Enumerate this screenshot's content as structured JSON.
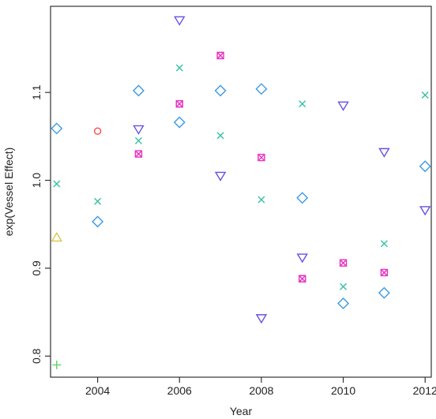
{
  "chart_data": {
    "type": "scatter",
    "title": "",
    "xlabel": "Year",
    "ylabel": "exp(Vessel Effect)",
    "xlim": [
      2002.85,
      2012.15
    ],
    "ylim": [
      0.776,
      1.198
    ],
    "x_ticks": [
      2004,
      2006,
      2008,
      2010,
      2012
    ],
    "y_ticks": [
      0.8,
      0.9,
      1.0,
      1.1
    ],
    "x_tick_labels": [
      "2004",
      "2006",
      "2008",
      "2010",
      "2012"
    ],
    "y_tick_labels": [
      "0.8",
      "0.9",
      "1.0",
      "1.1"
    ],
    "grid": false,
    "legend": "none",
    "series": [
      {
        "marker": "circle",
        "color": "#ff4b4b",
        "points": [
          {
            "x": 2004,
            "y": 1.056
          }
        ]
      },
      {
        "marker": "triangle-up",
        "color": "#d9c74a",
        "points": [
          {
            "x": 2003,
            "y": 0.935
          }
        ]
      },
      {
        "marker": "plus",
        "color": "#5fd35f",
        "points": [
          {
            "x": 2003,
            "y": 0.79
          }
        ]
      },
      {
        "marker": "x",
        "color": "#35c2a2",
        "points": [
          {
            "x": 2003,
            "y": 0.996
          },
          {
            "x": 2004,
            "y": 0.976
          },
          {
            "x": 2005,
            "y": 1.045
          },
          {
            "x": 2006,
            "y": 1.128
          },
          {
            "x": 2007,
            "y": 1.051
          },
          {
            "x": 2008,
            "y": 0.978
          },
          {
            "x": 2009,
            "y": 1.087
          },
          {
            "x": 2010,
            "y": 0.879
          },
          {
            "x": 2011,
            "y": 0.928
          },
          {
            "x": 2012,
            "y": 1.097
          }
        ]
      },
      {
        "marker": "diamond",
        "color": "#3a9ae6",
        "points": [
          {
            "x": 2003,
            "y": 1.059
          },
          {
            "x": 2004,
            "y": 0.953
          },
          {
            "x": 2005,
            "y": 1.102
          },
          {
            "x": 2006,
            "y": 1.066
          },
          {
            "x": 2007,
            "y": 1.102
          },
          {
            "x": 2008,
            "y": 1.104
          },
          {
            "x": 2009,
            "y": 0.98
          },
          {
            "x": 2010,
            "y": 0.86
          },
          {
            "x": 2011,
            "y": 0.872
          },
          {
            "x": 2012,
            "y": 1.016
          }
        ]
      },
      {
        "marker": "square-x",
        "color": "#e52fbf",
        "points": [
          {
            "x": 2005,
            "y": 1.03
          },
          {
            "x": 2006,
            "y": 1.087
          },
          {
            "x": 2007,
            "y": 1.142
          },
          {
            "x": 2008,
            "y": 1.026
          },
          {
            "x": 2009,
            "y": 0.888
          },
          {
            "x": 2010,
            "y": 0.906
          },
          {
            "x": 2011,
            "y": 0.895
          }
        ]
      },
      {
        "marker": "triangle-down",
        "color": "#6a4fe3",
        "points": [
          {
            "x": 2005,
            "y": 1.058
          },
          {
            "x": 2006,
            "y": 1.182
          },
          {
            "x": 2007,
            "y": 1.005
          },
          {
            "x": 2008,
            "y": 0.843
          },
          {
            "x": 2009,
            "y": 0.912
          },
          {
            "x": 2010,
            "y": 1.085
          },
          {
            "x": 2011,
            "y": 1.032
          },
          {
            "x": 2012,
            "y": 0.966
          }
        ]
      }
    ]
  }
}
